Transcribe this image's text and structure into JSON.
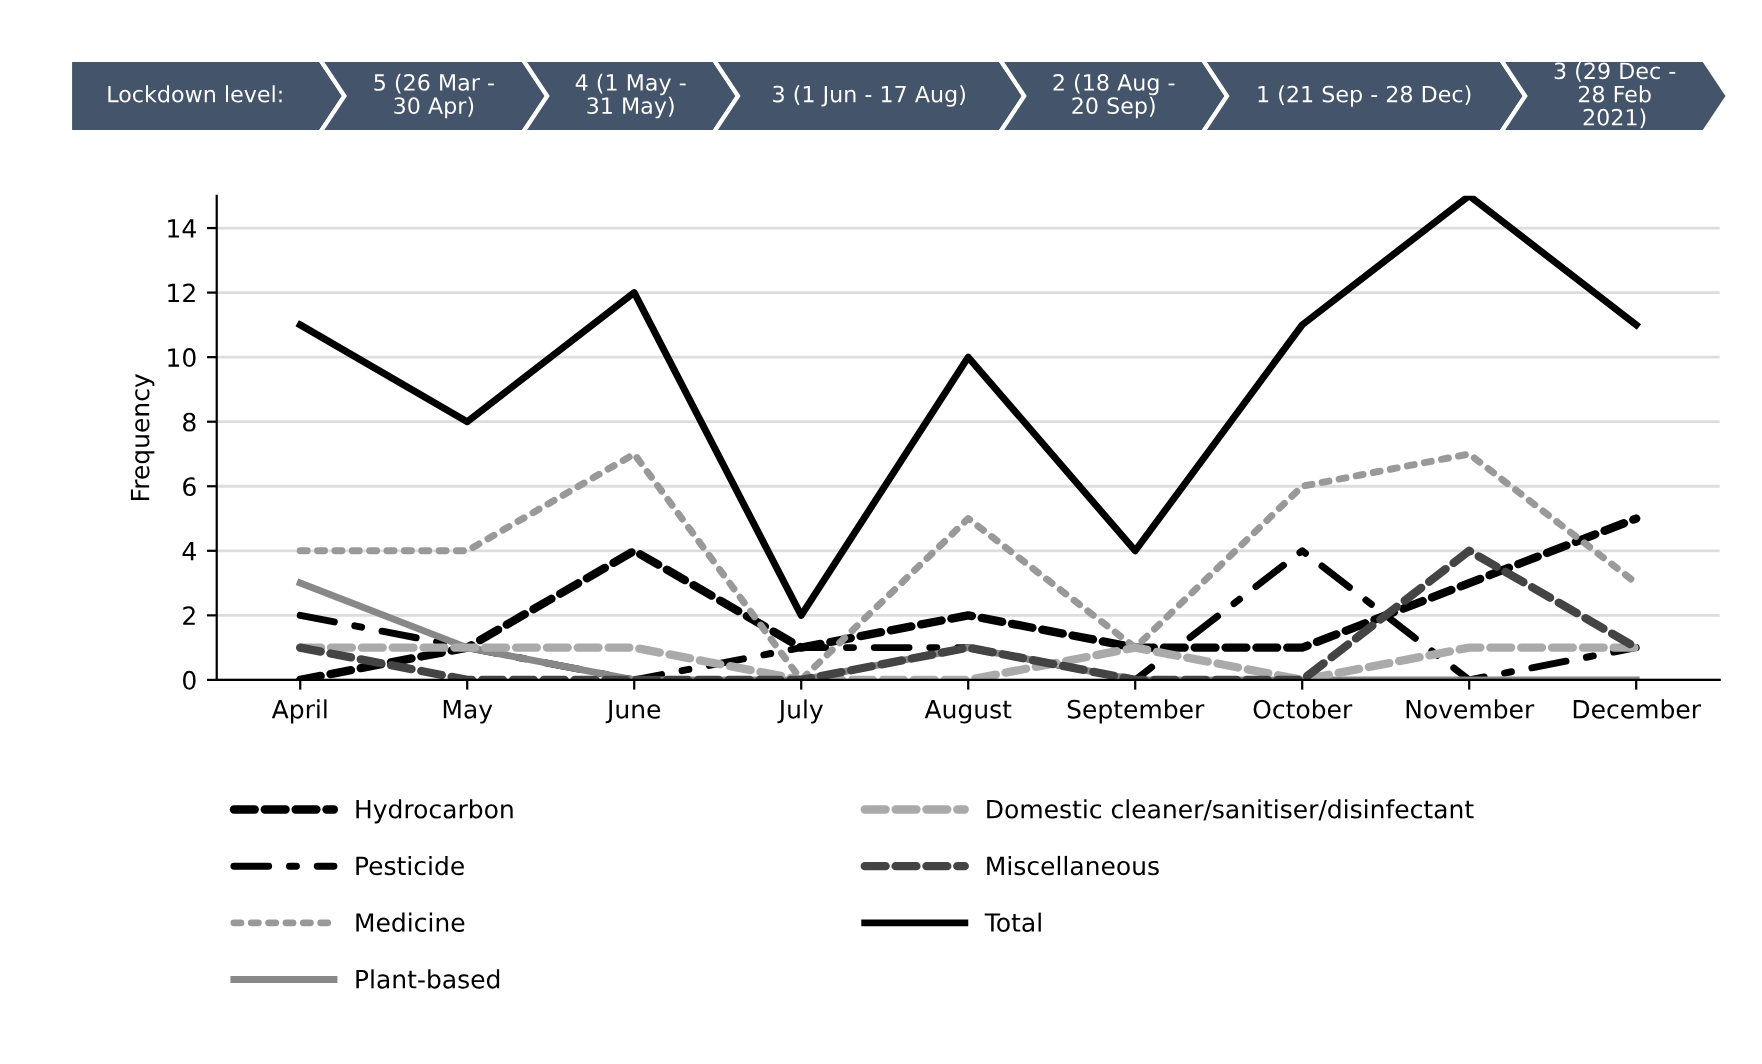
{
  "chart_data": {
    "type": "line",
    "ylabel": "Frequency",
    "annotations": [
      "Lockdown level:",
      "5 (26 Mar -\n30 Apr)",
      "4 (1 May -\n31 May)",
      "3 (1 Jun - 17 Aug)",
      "2 (18 Aug -\n20 Sep)",
      "1 (21 Sep - 28 Dec)",
      "3 (29 Dec -\n28 Feb\n2021)"
    ],
    "categories": [
      "April",
      "May",
      "June",
      "July",
      "August",
      "September",
      "October",
      "November",
      "December"
    ],
    "series": [
      {
        "name": "Hydrocarbon",
        "color": "#000000",
        "line_style": "dashed",
        "values": [
          0,
          1,
          4,
          1,
          2,
          1,
          1,
          3,
          5
        ]
      },
      {
        "name": "Pesticide",
        "color": "#000000",
        "line_style": "dashdot",
        "values": [
          2,
          1,
          0,
          1,
          1,
          0,
          4,
          0,
          1
        ]
      },
      {
        "name": "Medicine",
        "color": "#999999",
        "line_style": "dotted",
        "values": [
          4,
          4,
          7,
          0,
          5,
          1,
          6,
          7,
          3
        ]
      },
      {
        "name": "Plant-based",
        "color": "#888888",
        "line_style": "solid",
        "values": [
          3,
          1,
          0,
          0,
          1,
          0,
          0,
          0,
          0
        ]
      },
      {
        "name": "Domestic cleaner/sanitiser/disinfectant",
        "color": "#aaaaaa",
        "line_style": "dashed",
        "values": [
          1,
          1,
          1,
          0,
          0,
          1,
          0,
          1,
          1
        ]
      },
      {
        "name": "Miscellaneous",
        "color": "#444444",
        "line_style": "dashed",
        "values": [
          1,
          0,
          0,
          0,
          1,
          0,
          0,
          4,
          1
        ]
      },
      {
        "name": "Total",
        "color": "#000000",
        "line_style": "solid",
        "values": [
          11,
          8,
          12,
          2,
          10,
          4,
          11,
          15,
          11
        ]
      }
    ],
    "ylim": [
      0,
      15
    ],
    "yticks": [
      0,
      2,
      4,
      6,
      8,
      10,
      12,
      14
    ],
    "grid": "y",
    "legend": "bottom"
  }
}
